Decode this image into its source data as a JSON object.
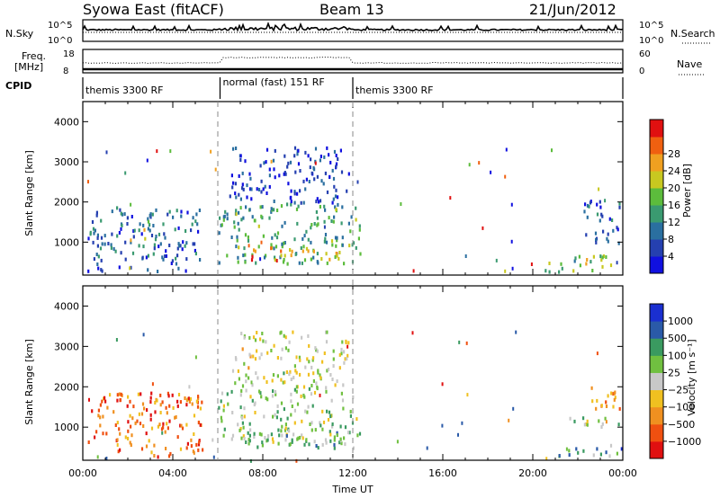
{
  "header": {
    "station": "Syowa East (fitACF)",
    "beam": "Beam 13",
    "date": "21/Jun/2012"
  },
  "top_panels": {
    "nsky_label": "N.Sky",
    "nsky_ticks": [
      "10^5",
      "10^0"
    ],
    "nsearch_label": "N.Search",
    "nsearch_ticks": [
      "10^5",
      "10^0"
    ],
    "freq_label": "Freq.",
    "freq_unit": "[MHz]",
    "freq_ticks": [
      "18",
      "8"
    ],
    "nave_label": "Nave",
    "nave_ticks": [
      "60",
      "0"
    ],
    "cpid_label": "CPID",
    "cpid_segments": [
      {
        "label": "themis 3300 RF",
        "start_h": 0,
        "end_h": 6.1
      },
      {
        "label": "normal (fast) 151 RF",
        "start_h": 6.1,
        "end_h": 12.0
      },
      {
        "label": "themis 3300 RF",
        "start_h": 12.0,
        "end_h": 24
      }
    ]
  },
  "chart_data": [
    {
      "type": "heatmap",
      "name": "power-panel",
      "ylabel": "Slant Range [km]",
      "xlim_hours": [
        0,
        24
      ],
      "ylim_km": [
        180,
        4500
      ],
      "y_ticks": [
        1000,
        2000,
        3000,
        4000
      ],
      "colorbar_label": "Power [dB]",
      "colorbar_ticks": [
        "4",
        "8",
        "12",
        "16",
        "20",
        "24",
        "28"
      ],
      "colorbar_colors": [
        "#1010e0",
        "#2540b0",
        "#2a6fa0",
        "#3a9a70",
        "#5cbc3c",
        "#c8c820",
        "#f0a020",
        "#f06010",
        "#e01010"
      ],
      "echo_regions": [
        {
          "t0": 0.2,
          "t1": 5.3,
          "r0": 300,
          "r1": 1900,
          "level": 0.25
        },
        {
          "t0": 2.6,
          "t1": 3.0,
          "r0": 1100,
          "r1": 1700,
          "level": 0.55
        },
        {
          "t0": 6.0,
          "t1": 12.3,
          "r0": 500,
          "r1": 2000,
          "level": 0.4
        },
        {
          "t0": 7.0,
          "t1": 11.5,
          "r0": 600,
          "r1": 900,
          "level": 0.75
        },
        {
          "t0": 6.5,
          "t1": 11.8,
          "r0": 2000,
          "r1": 3400,
          "level": 0.15
        },
        {
          "t0": 20.5,
          "t1": 23.9,
          "r0": 300,
          "r1": 700,
          "level": 0.5
        },
        {
          "t0": 22.2,
          "t1": 23.9,
          "r0": 1000,
          "r1": 2100,
          "level": 0.2
        }
      ]
    },
    {
      "type": "heatmap",
      "name": "velocity-panel",
      "ylabel": "Slant Range [km]",
      "xlabel": "Time UT",
      "xlim_hours": [
        0,
        24
      ],
      "ylim_km": [
        180,
        4500
      ],
      "y_ticks": [
        1000,
        2000,
        3000,
        4000
      ],
      "x_tick_labels": [
        "00:00",
        "04:00",
        "08:00",
        "12:00",
        "16:00",
        "20:00",
        "00:00"
      ],
      "colorbar_label": "Velocity [m s⁻¹]",
      "colorbar_ticks": [
        "1000",
        "500",
        "100",
        "25",
        "−25",
        "−100",
        "−500",
        "−1000"
      ],
      "colorbar_colors": [
        "#1a2fd0",
        "#2a5aa8",
        "#3a9a60",
        "#70c040",
        "#c8c8c8",
        "#f0c020",
        "#f09020",
        "#f05010",
        "#e01010"
      ],
      "echo_regions": [
        {
          "t0": 0.2,
          "t1": 5.3,
          "r0": 300,
          "r1": 1900,
          "level": 0.78
        },
        {
          "t0": 2.6,
          "t1": 3.2,
          "r0": 1200,
          "r1": 1900,
          "level": 0.9
        },
        {
          "t0": 6.0,
          "t1": 12.3,
          "r0": 600,
          "r1": 2000,
          "level": 0.42
        },
        {
          "t0": 7.0,
          "t1": 11.8,
          "r0": 500,
          "r1": 900,
          "level": 0.3
        },
        {
          "t0": 6.5,
          "t1": 11.8,
          "r0": 2000,
          "r1": 3400,
          "level": 0.5
        },
        {
          "t0": 21.0,
          "t1": 23.9,
          "r0": 300,
          "r1": 600,
          "level": 0.3
        },
        {
          "t0": 21.5,
          "t1": 23.9,
          "r0": 1000,
          "r1": 1300,
          "level": 0.45
        },
        {
          "t0": 22.5,
          "t1": 23.9,
          "r0": 1400,
          "r1": 2100,
          "level": 0.75
        }
      ]
    }
  ]
}
